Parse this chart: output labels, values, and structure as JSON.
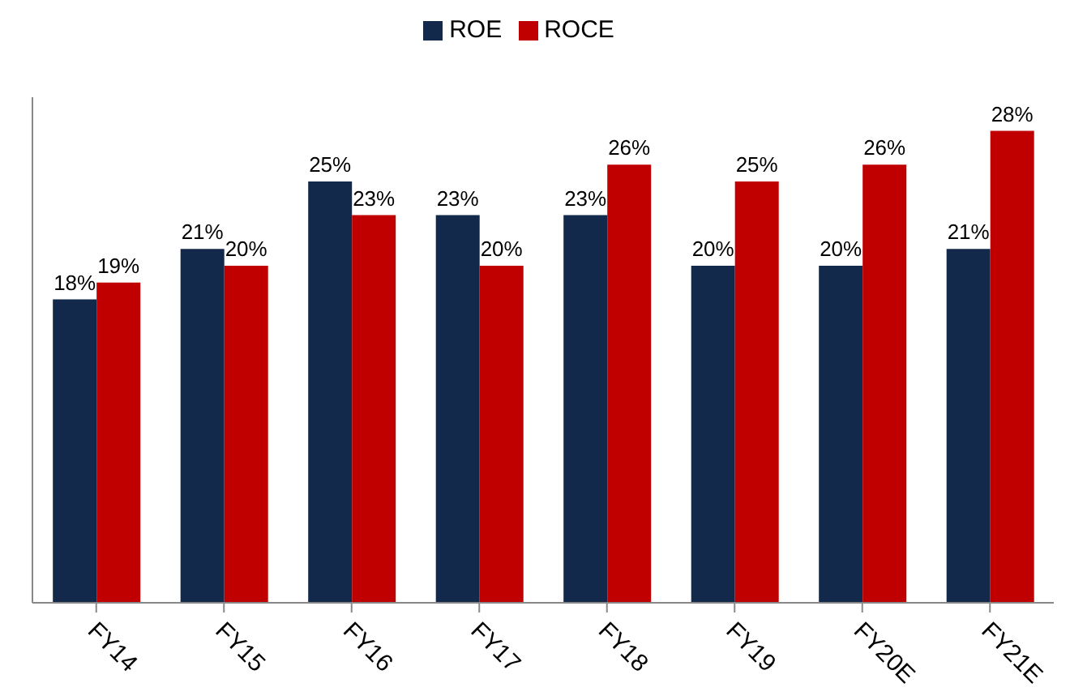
{
  "chart_data": {
    "type": "bar",
    "categories": [
      "FY14",
      "FY15",
      "FY16",
      "FY17",
      "FY18",
      "FY19",
      "FY20E",
      "FY21E"
    ],
    "series": [
      {
        "name": "ROE",
        "color": "#13294b",
        "values": [
          18,
          21,
          25,
          23,
          23,
          20,
          20,
          21
        ],
        "value_labels": [
          "18%",
          "21%",
          "25%",
          "23%",
          "23%",
          "20%",
          "20%",
          "21%"
        ]
      },
      {
        "name": "ROCE",
        "color": "#c00000",
        "values": [
          19,
          20,
          23,
          20,
          26,
          25,
          26,
          28
        ],
        "value_labels": [
          "19%",
          "20%",
          "23%",
          "20%",
          "26%",
          "25%",
          "26%",
          "28%"
        ]
      }
    ],
    "ylim": [
      0,
      30
    ],
    "tick_labels": "x",
    "grid": false,
    "legend": "top"
  }
}
